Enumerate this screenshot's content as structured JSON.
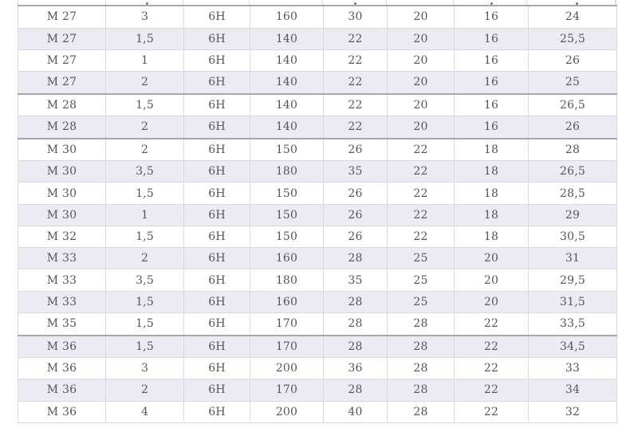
{
  "colors": {
    "page_bg": "#ffffff",
    "row_bg": "#ffffff",
    "row_alt_bg": "#ebebf3",
    "border_light": "#d9d9e2",
    "border_dark": "#a7a7b1",
    "text": "#54545c"
  },
  "chart_data": {
    "type": "table",
    "title": "",
    "visible_headers": [],
    "rows": [
      [
        "M 27",
        "3",
        "6H",
        "160",
        "30",
        "20",
        "16",
        "24"
      ],
      [
        "M 27",
        "1,5",
        "6H",
        "140",
        "22",
        "20",
        "16",
        "25,5"
      ],
      [
        "M 27",
        "1",
        "6H",
        "140",
        "22",
        "20",
        "16",
        "26"
      ],
      [
        "M 27",
        "2",
        "6H",
        "140",
        "22",
        "20",
        "16",
        "25"
      ],
      [
        "M 28",
        "1,5",
        "6H",
        "140",
        "22",
        "20",
        "16",
        "26,5"
      ],
      [
        "M 28",
        "2",
        "6H",
        "140",
        "22",
        "20",
        "16",
        "26"
      ],
      [
        "M 30",
        "2",
        "6H",
        "150",
        "26",
        "22",
        "18",
        "28"
      ],
      [
        "M 30",
        "3,5",
        "6H",
        "180",
        "35",
        "22",
        "18",
        "26,5"
      ],
      [
        "M 30",
        "1,5",
        "6H",
        "150",
        "26",
        "22",
        "18",
        "28,5"
      ],
      [
        "M 30",
        "1",
        "6H",
        "150",
        "26",
        "22",
        "18",
        "29"
      ],
      [
        "M 32",
        "1,5",
        "6H",
        "150",
        "26",
        "22",
        "18",
        "30,5"
      ],
      [
        "M 33",
        "2",
        "6H",
        "160",
        "28",
        "25",
        "20",
        "31"
      ],
      [
        "M 33",
        "3,5",
        "6H",
        "180",
        "35",
        "25",
        "20",
        "29,5"
      ],
      [
        "M 33",
        "1,5",
        "6H",
        "160",
        "28",
        "25",
        "20",
        "31,5"
      ],
      [
        "M 35",
        "1,5",
        "6H",
        "170",
        "28",
        "28",
        "22",
        "33,5"
      ],
      [
        "M 36",
        "1,5",
        "6H",
        "170",
        "28",
        "28",
        "22",
        "34,5"
      ],
      [
        "M 36",
        "3",
        "6H",
        "200",
        "36",
        "28",
        "22",
        "33"
      ],
      [
        "M 36",
        "2",
        "6H",
        "170",
        "28",
        "28",
        "22",
        "34"
      ],
      [
        "M 36",
        "4",
        "6H",
        "200",
        "40",
        "28",
        "22",
        "32"
      ]
    ],
    "zebra_striping": "rows alternate white / lavender starting with white",
    "thick_separator_after_row_indexes": [
      3,
      5,
      14
    ],
    "clipped_top_row": {
      "note": "only unreadable bottom fragments of glyphs visible in columns 2, 5, 7 and 8"
    }
  }
}
